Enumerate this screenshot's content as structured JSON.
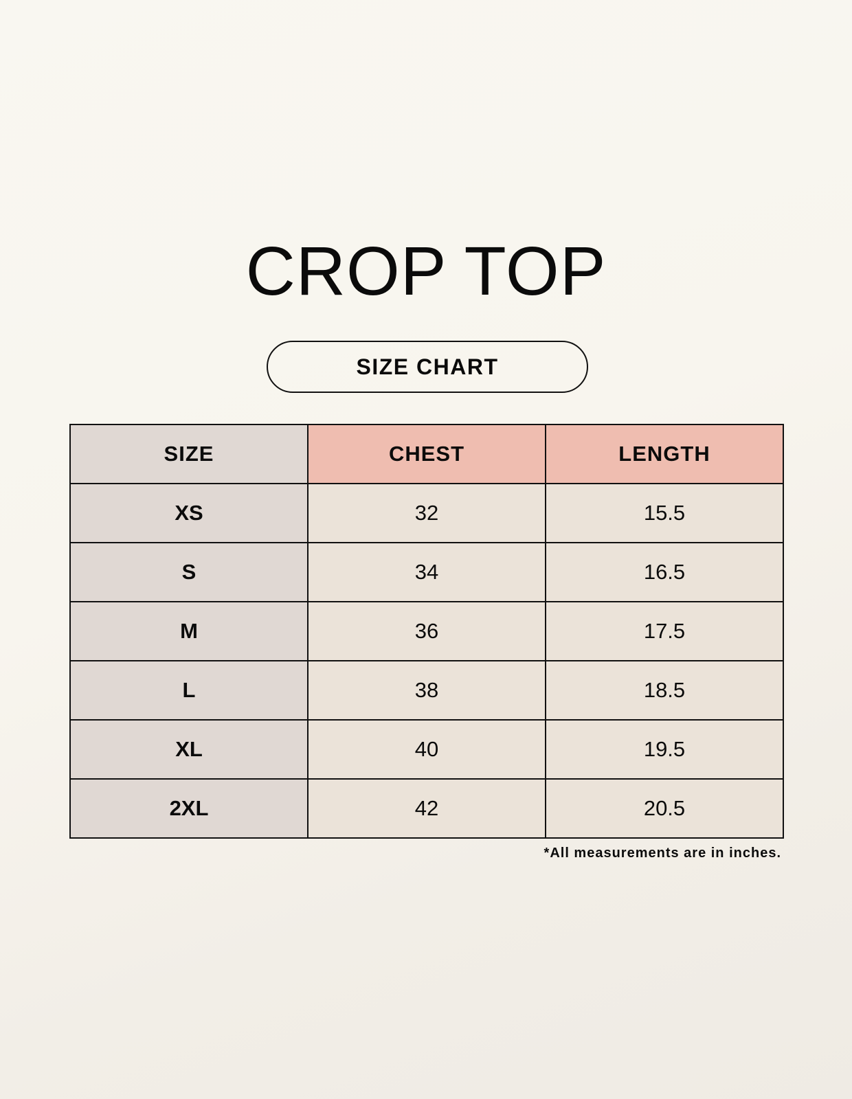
{
  "title": "CROP TOP",
  "subtitle": "SIZE CHART",
  "colors": {
    "header_accent": "#efbdb0",
    "size_column": "#e0d8d3",
    "value_cells": "#ebe3d9"
  },
  "table": {
    "headers": [
      "SIZE",
      "CHEST",
      "LENGTH"
    ],
    "rows": [
      [
        "XS",
        "32",
        "15.5"
      ],
      [
        "S",
        "34",
        "16.5"
      ],
      [
        "M",
        "36",
        "17.5"
      ],
      [
        "L",
        "38",
        "18.5"
      ],
      [
        "XL",
        "40",
        "19.5"
      ],
      [
        "2XL",
        "42",
        "20.5"
      ]
    ]
  },
  "footnote": "*All measurements are in inches."
}
